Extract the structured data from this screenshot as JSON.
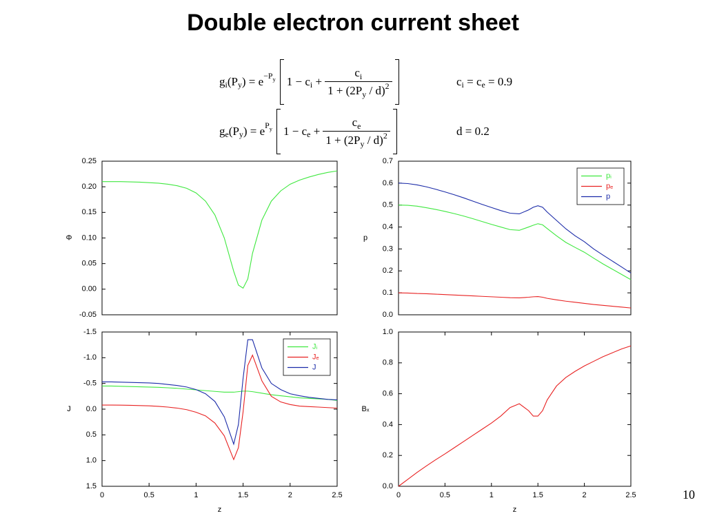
{
  "title": "Double electron current sheet",
  "page_number": "10",
  "equations": [
    {
      "lhs": [
        [
          "g",
          "n"
        ],
        [
          "i",
          "sub"
        ],
        [
          "(P",
          "n"
        ],
        [
          "y",
          "sub"
        ],
        [
          ") = e",
          "n"
        ],
        [
          "−P",
          "sup"
        ],
        [
          "y",
          "supsub"
        ]
      ],
      "inner": [
        [
          "1 − c",
          "n"
        ],
        [
          "i",
          "sub"
        ],
        [
          " +",
          "n"
        ]
      ],
      "numerator": [
        [
          "c",
          "n"
        ],
        [
          "i",
          "sub"
        ]
      ],
      "denominator": [
        [
          "1 + (2P",
          "n"
        ],
        [
          "y",
          "sub"
        ],
        [
          " / d)",
          "n"
        ],
        [
          "2",
          "sup"
        ]
      ],
      "condition": [
        [
          "c",
          "n"
        ],
        [
          "i",
          "sub"
        ],
        [
          " = c",
          "n"
        ],
        [
          "e",
          "sub"
        ],
        [
          " = 0.9",
          "n"
        ]
      ]
    },
    {
      "lhs": [
        [
          "g",
          "n"
        ],
        [
          "e",
          "sub"
        ],
        [
          "(P",
          "n"
        ],
        [
          "y",
          "sub"
        ],
        [
          ") = e",
          "n"
        ],
        [
          "P",
          "sup"
        ],
        [
          "y",
          "supsub"
        ]
      ],
      "inner": [
        [
          "1 − c",
          "n"
        ],
        [
          "e",
          "sub"
        ],
        [
          " +",
          "n"
        ]
      ],
      "numerator": [
        [
          "c",
          "n"
        ],
        [
          "e",
          "sub"
        ]
      ],
      "denominator": [
        [
          "1 + (2P",
          "n"
        ],
        [
          "y",
          "sub"
        ],
        [
          " / d)",
          "n"
        ],
        [
          "2",
          "sup"
        ]
      ],
      "condition": [
        [
          "d = 0.2",
          "n"
        ]
      ]
    }
  ],
  "chart_data": [
    {
      "type": "line",
      "ylabel": "Φ",
      "x": [
        0,
        0.1,
        0.2,
        0.3,
        0.4,
        0.5,
        0.6,
        0.7,
        0.8,
        0.9,
        1.0,
        1.1,
        1.2,
        1.3,
        1.4,
        1.45,
        1.5,
        1.55,
        1.6,
        1.7,
        1.8,
        1.9,
        2.0,
        2.1,
        2.2,
        2.3,
        2.4,
        2.5
      ],
      "values": [
        0.21,
        0.21,
        0.21,
        0.2095,
        0.209,
        0.208,
        0.207,
        0.205,
        0.202,
        0.197,
        0.188,
        0.172,
        0.145,
        0.1,
        0.035,
        0.008,
        0.002,
        0.02,
        0.07,
        0.135,
        0.172,
        0.192,
        0.205,
        0.213,
        0.219,
        0.224,
        0.228,
        0.231
      ],
      "color": "#3ee83e",
      "xlim": [
        0,
        2.5
      ],
      "ylim": [
        -0.05,
        0.25
      ],
      "yticks": [
        {
          "value": -0.05,
          "label": "-0.05"
        },
        {
          "value": 0,
          "label": "0.00"
        },
        {
          "value": 0.05,
          "label": "0.05"
        },
        {
          "value": 0.1,
          "label": "0.10"
        },
        {
          "value": 0.15,
          "label": "0.15"
        },
        {
          "value": 0.2,
          "label": "0.20"
        },
        {
          "value": 0.25,
          "label": "0.25"
        }
      ]
    },
    {
      "type": "line",
      "ylabel": "p",
      "x": [
        0,
        0.1,
        0.2,
        0.3,
        0.4,
        0.5,
        0.6,
        0.7,
        0.8,
        0.9,
        1.0,
        1.1,
        1.2,
        1.3,
        1.4,
        1.45,
        1.5,
        1.55,
        1.6,
        1.7,
        1.8,
        1.9,
        2.0,
        2.1,
        2.2,
        2.3,
        2.4,
        2.5
      ],
      "series": [
        {
          "name": "pᵢ",
          "color": "#3ee83e",
          "values": [
            0.5,
            0.499,
            0.495,
            0.488,
            0.48,
            0.471,
            0.461,
            0.45,
            0.438,
            0.425,
            0.412,
            0.4,
            0.388,
            0.385,
            0.4,
            0.408,
            0.415,
            0.41,
            0.393,
            0.36,
            0.33,
            0.307,
            0.285,
            0.258,
            0.232,
            0.208,
            0.184,
            0.16
          ]
        },
        {
          "name": "pₑ",
          "color": "#e82020",
          "values": [
            0.1,
            0.099,
            0.097,
            0.096,
            0.094,
            0.092,
            0.09,
            0.088,
            0.086,
            0.084,
            0.082,
            0.08,
            0.078,
            0.077,
            0.08,
            0.082,
            0.083,
            0.08,
            0.075,
            0.068,
            0.062,
            0.057,
            0.052,
            0.047,
            0.043,
            0.039,
            0.035,
            0.031
          ]
        },
        {
          "name": "p",
          "color": "#1a2aa8",
          "values": [
            0.6,
            0.598,
            0.592,
            0.583,
            0.572,
            0.56,
            0.547,
            0.533,
            0.518,
            0.503,
            0.489,
            0.475,
            0.463,
            0.46,
            0.478,
            0.49,
            0.497,
            0.49,
            0.468,
            0.43,
            0.392,
            0.36,
            0.333,
            0.3,
            0.272,
            0.245,
            0.218,
            0.19
          ]
        }
      ],
      "legend": "upper right",
      "xlim": [
        0,
        2.5
      ],
      "ylim": [
        0,
        0.7
      ],
      "yticks": [
        {
          "value": 0,
          "label": "0.0"
        },
        0.1,
        0.2,
        0.3,
        0.4,
        0.5,
        0.6,
        0.7
      ]
    },
    {
      "type": "line",
      "ylabel": "J",
      "xlabel": "z",
      "x": [
        0,
        0.1,
        0.2,
        0.3,
        0.4,
        0.5,
        0.6,
        0.7,
        0.8,
        0.9,
        1.0,
        1.1,
        1.2,
        1.3,
        1.4,
        1.45,
        1.5,
        1.55,
        1.6,
        1.7,
        1.8,
        1.9,
        2.0,
        2.1,
        2.2,
        2.3,
        2.4,
        2.5
      ],
      "series": [
        {
          "name": "Jᵢ",
          "color": "#3ee83e",
          "values": [
            -0.45,
            -0.45,
            -0.445,
            -0.44,
            -0.435,
            -0.43,
            -0.425,
            -0.415,
            -0.405,
            -0.39,
            -0.375,
            -0.36,
            -0.345,
            -0.33,
            -0.33,
            -0.34,
            -0.35,
            -0.35,
            -0.34,
            -0.31,
            -0.28,
            -0.26,
            -0.24,
            -0.22,
            -0.21,
            -0.2,
            -0.19,
            -0.17
          ]
        },
        {
          "name": "Jₑ",
          "color": "#e82020",
          "values": [
            -0.08,
            -0.08,
            -0.078,
            -0.075,
            -0.07,
            -0.065,
            -0.055,
            -0.04,
            -0.02,
            0.01,
            0.06,
            0.13,
            0.27,
            0.52,
            0.98,
            0.75,
            0.05,
            -0.85,
            -1.05,
            -0.55,
            -0.25,
            -0.14,
            -0.09,
            -0.06,
            -0.05,
            -0.04,
            -0.03,
            -0.02
          ]
        },
        {
          "name": "J",
          "color": "#1a2aa8",
          "values": [
            -0.53,
            -0.53,
            -0.525,
            -0.52,
            -0.515,
            -0.51,
            -0.5,
            -0.48,
            -0.46,
            -0.43,
            -0.38,
            -0.3,
            -0.15,
            0.15,
            0.68,
            0.3,
            -0.6,
            -1.35,
            -1.35,
            -0.8,
            -0.5,
            -0.38,
            -0.3,
            -0.26,
            -0.23,
            -0.21,
            -0.19,
            -0.18
          ]
        }
      ],
      "legend": "upper right",
      "xlim": [
        0,
        2.5
      ],
      "ylim": [
        1.5,
        -1.5
      ],
      "xticks": [
        0,
        0.5,
        1,
        1.5,
        2,
        2.5
      ],
      "yticks": [
        -1.5,
        {
          "value": -1,
          "label": "-1.0"
        },
        -0.5,
        {
          "value": 0,
          "label": "0.0"
        },
        0.5,
        {
          "value": 1,
          "label": "1.0"
        },
        1.5
      ]
    },
    {
      "type": "line",
      "ylabel": "Bₓ",
      "xlabel": "z",
      "x": [
        0,
        0.1,
        0.2,
        0.3,
        0.4,
        0.5,
        0.6,
        0.7,
        0.8,
        0.9,
        1.0,
        1.1,
        1.2,
        1.3,
        1.4,
        1.45,
        1.5,
        1.55,
        1.6,
        1.7,
        1.8,
        1.9,
        2.0,
        2.1,
        2.2,
        2.3,
        2.4,
        2.5
      ],
      "values": [
        0,
        0.045,
        0.09,
        0.132,
        0.172,
        0.21,
        0.25,
        0.29,
        0.33,
        0.37,
        0.41,
        0.455,
        0.51,
        0.535,
        0.49,
        0.455,
        0.455,
        0.49,
        0.56,
        0.65,
        0.705,
        0.745,
        0.78,
        0.81,
        0.84,
        0.865,
        0.89,
        0.91
      ],
      "color": "#e82020",
      "xlim": [
        0,
        2.5
      ],
      "ylim": [
        0,
        1
      ],
      "xticks": [
        0,
        0.5,
        1,
        1.5,
        2,
        2.5
      ],
      "yticks": [
        {
          "value": 0,
          "label": "0.0"
        },
        0.2,
        0.4,
        0.6,
        0.8,
        {
          "value": 1,
          "label": "1.0"
        }
      ]
    }
  ]
}
